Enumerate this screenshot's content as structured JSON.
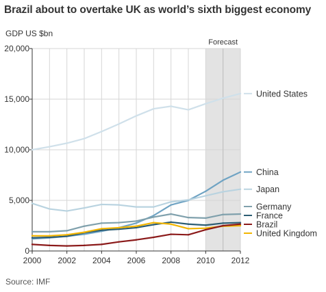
{
  "title": "Brazil about to overtake UK as world’s sixth biggest economy",
  "unit_label": "GDP US $bn",
  "source": "Source: IMF",
  "forecast_label": "Forecast",
  "chart_data": {
    "type": "line",
    "title": "Brazil about to overtake UK as world’s sixth biggest economy",
    "ylabel": "GDP US $bn",
    "xlabel": "",
    "x": [
      2000,
      2001,
      2002,
      2003,
      2004,
      2005,
      2006,
      2007,
      2008,
      2009,
      2010,
      2011,
      2012
    ],
    "xlim": [
      2000,
      2012
    ],
    "ylim": [
      0,
      20000
    ],
    "x_ticks": [
      "2000",
      "2002",
      "2004",
      "2006",
      "2008",
      "2010",
      "2012"
    ],
    "y_ticks": [
      "0",
      "5,000",
      "10,000",
      "15,000",
      "20,000"
    ],
    "grid": "horizontal and vertical",
    "forecast_region": [
      2010,
      2012
    ],
    "legend_placement": "right, labels at line ends",
    "series": [
      {
        "name": "United States",
        "color": "#cfe0ea",
        "values": [
          10000,
          10300,
          10650,
          11100,
          11800,
          12550,
          13350,
          14050,
          14300,
          13950,
          14550,
          15100,
          15550
        ]
      },
      {
        "name": "China",
        "color": "#6fa3c3",
        "values": [
          1200,
          1300,
          1450,
          1650,
          1950,
          2300,
          2750,
          3500,
          4550,
          5000,
          5900,
          6990,
          7800
        ]
      },
      {
        "name": "Japan",
        "color": "#b9d3e0",
        "values": [
          4700,
          4150,
          3950,
          4250,
          4600,
          4550,
          4350,
          4350,
          4850,
          5050,
          5450,
          5850,
          6100
        ]
      },
      {
        "name": "Germany",
        "color": "#7fa0ac",
        "values": [
          1900,
          1900,
          2000,
          2450,
          2750,
          2800,
          2950,
          3350,
          3650,
          3300,
          3250,
          3600,
          3650
        ]
      },
      {
        "name": "France",
        "color": "#2c5d73",
        "values": [
          1300,
          1350,
          1450,
          1800,
          2050,
          2150,
          2300,
          2600,
          2850,
          2650,
          2550,
          2750,
          2800
        ]
      },
      {
        "name": "United Kingdom",
        "color": "#f2b500",
        "values": [
          1500,
          1500,
          1600,
          1850,
          2200,
          2300,
          2450,
          2800,
          2650,
          2200,
          2250,
          2450,
          2500
        ]
      },
      {
        "name": "Brazil",
        "color": "#8b1a1a",
        "values": [
          650,
          550,
          500,
          550,
          650,
          900,
          1100,
          1350,
          1650,
          1600,
          2100,
          2500,
          2650
        ]
      }
    ]
  }
}
